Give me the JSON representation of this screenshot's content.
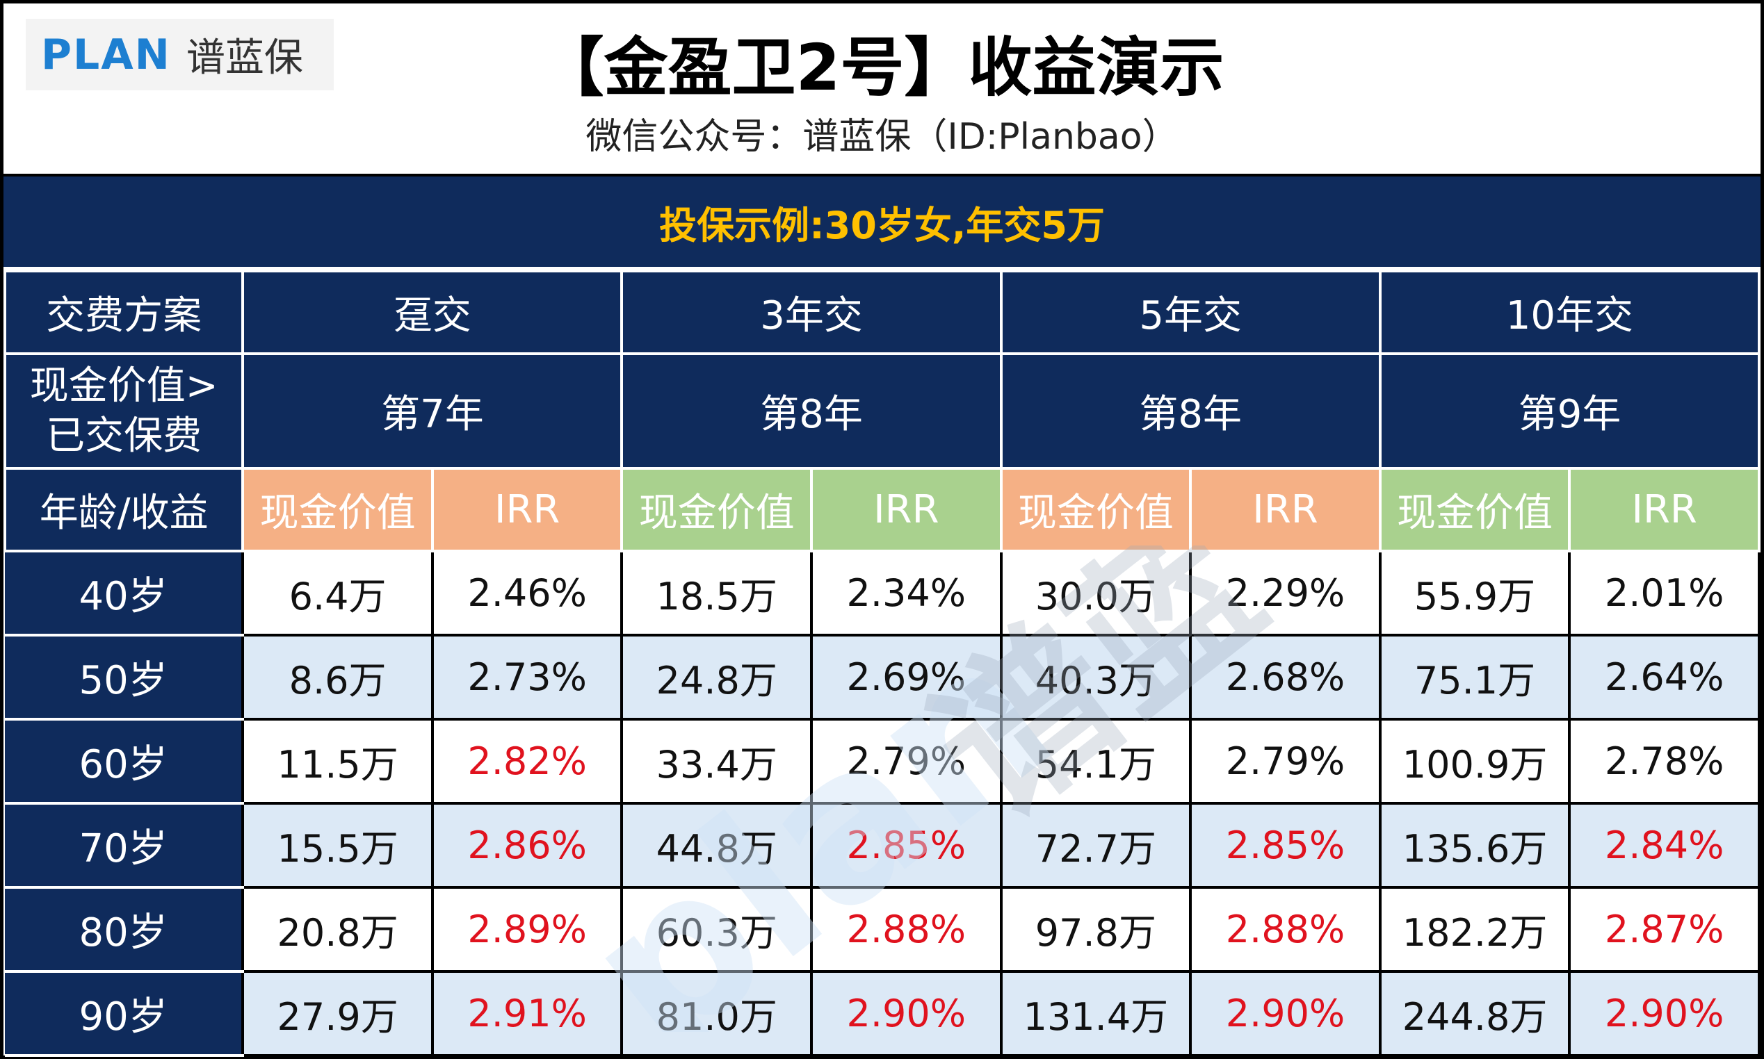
{
  "brand": {
    "logo_word": "PLAN",
    "logo_name": "谱蓝保"
  },
  "header": {
    "title": "【金盈卫2号】收益演示",
    "subtitle": "微信公众号：谱蓝保（ID:Planbao）"
  },
  "example": {
    "text": "投保示例:30岁女,年交5万"
  },
  "table": {
    "row_labels": {
      "plan": "交费方案",
      "breakeven_line1": "现金价值>",
      "breakeven_line2": "已交保费",
      "age_yield": "年龄/收益"
    },
    "plans": [
      {
        "name": "趸交",
        "breakeven": "第7年",
        "cv_label": "现金价值",
        "irr_label": "IRR"
      },
      {
        "name": "3年交",
        "breakeven": "第8年",
        "cv_label": "现金价值",
        "irr_label": "IRR"
      },
      {
        "name": "5年交",
        "breakeven": "第8年",
        "cv_label": "现金价值",
        "irr_label": "IRR"
      },
      {
        "name": "10年交",
        "breakeven": "第9年",
        "cv_label": "现金价值",
        "irr_label": "IRR"
      }
    ],
    "rows": [
      {
        "age": "40岁",
        "cells": [
          {
            "cv": "6.4万",
            "irr": "2.46%",
            "hl": false
          },
          {
            "cv": "18.5万",
            "irr": "2.34%",
            "hl": false
          },
          {
            "cv": "30.0万",
            "irr": "2.29%",
            "hl": false
          },
          {
            "cv": "55.9万",
            "irr": "2.01%",
            "hl": false
          }
        ]
      },
      {
        "age": "50岁",
        "cells": [
          {
            "cv": "8.6万",
            "irr": "2.73%",
            "hl": false
          },
          {
            "cv": "24.8万",
            "irr": "2.69%",
            "hl": false
          },
          {
            "cv": "40.3万",
            "irr": "2.68%",
            "hl": false
          },
          {
            "cv": "75.1万",
            "irr": "2.64%",
            "hl": false
          }
        ]
      },
      {
        "age": "60岁",
        "cells": [
          {
            "cv": "11.5万",
            "irr": "2.82%",
            "hl": true
          },
          {
            "cv": "33.4万",
            "irr": "2.79%",
            "hl": false
          },
          {
            "cv": "54.1万",
            "irr": "2.79%",
            "hl": false
          },
          {
            "cv": "100.9万",
            "irr": "2.78%",
            "hl": false
          }
        ]
      },
      {
        "age": "70岁",
        "cells": [
          {
            "cv": "15.5万",
            "irr": "2.86%",
            "hl": true
          },
          {
            "cv": "44.8万",
            "irr": "2.85%",
            "hl": true
          },
          {
            "cv": "72.7万",
            "irr": "2.85%",
            "hl": true
          },
          {
            "cv": "135.6万",
            "irr": "2.84%",
            "hl": true
          }
        ]
      },
      {
        "age": "80岁",
        "cells": [
          {
            "cv": "20.8万",
            "irr": "2.89%",
            "hl": true
          },
          {
            "cv": "60.3万",
            "irr": "2.88%",
            "hl": true
          },
          {
            "cv": "97.8万",
            "irr": "2.88%",
            "hl": true
          },
          {
            "cv": "182.2万",
            "irr": "2.87%",
            "hl": true
          }
        ]
      },
      {
        "age": "90岁",
        "cells": [
          {
            "cv": "27.9万",
            "irr": "2.91%",
            "hl": true
          },
          {
            "cv": "81.0万",
            "irr": "2.90%",
            "hl": true
          },
          {
            "cv": "131.4万",
            "irr": "2.90%",
            "hl": true
          },
          {
            "cv": "244.8万",
            "irr": "2.90%",
            "hl": true
          }
        ]
      }
    ]
  },
  "watermark": {
    "word": "plan",
    "name": "谱蓝"
  },
  "colors": {
    "navy": "#0f2b5c",
    "gold": "#ffc000",
    "orange_header": "#f5b085",
    "green_header": "#a9d18e",
    "row_tint": "#dce9f6",
    "highlight_red": "#e0121e",
    "logo_blue": "#1d7fd1"
  }
}
